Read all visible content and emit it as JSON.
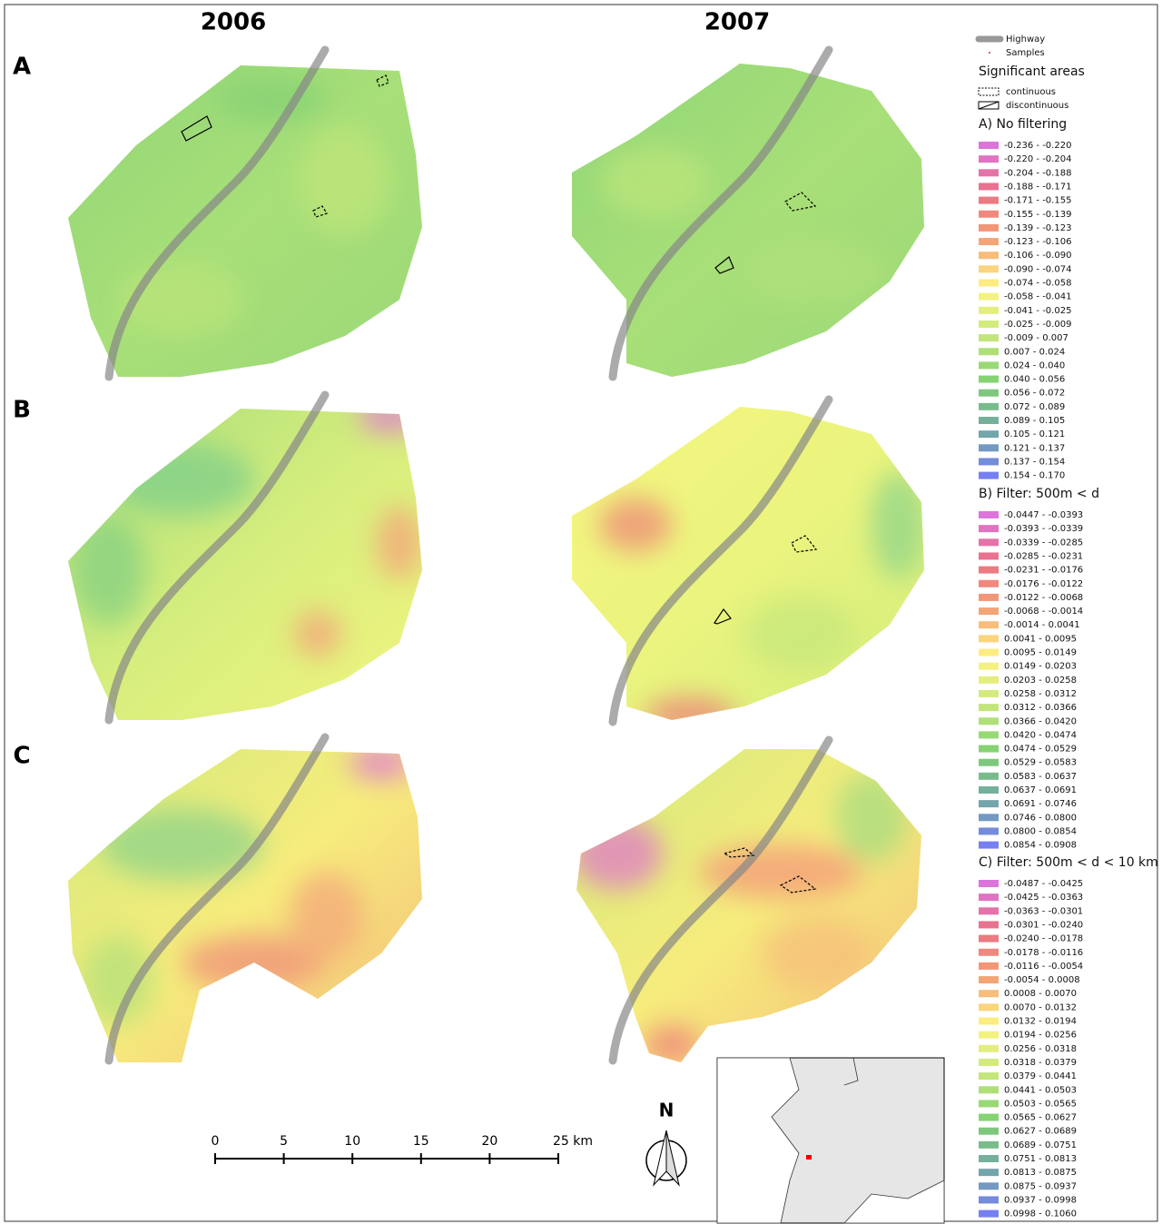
{
  "column_titles": [
    "2006",
    "2007"
  ],
  "row_labels": [
    "A",
    "B",
    "C"
  ],
  "legend": {
    "highway": "Highway",
    "samples": "Samples",
    "significant_title": "Significant areas",
    "continuous": "continuous",
    "discontinuous": "discontinuous",
    "sections": [
      {
        "title": "A) No filtering",
        "color_stops": [
          "#dc74dc",
          "#ea7284",
          "#f4a274",
          "#fef482",
          "#c8e87a",
          "#82d272",
          "#72aaa2",
          "#7680f2"
        ],
        "entries": [
          "-0.236 - -0.220",
          "-0.220 - -0.204",
          "-0.204 - -0.188",
          "-0.188 - -0.171",
          "-0.171 - -0.155",
          "-0.155 - -0.139",
          "-0.139 - -0.123",
          "-0.123 - -0.106",
          "-0.106 - -0.090",
          "-0.090 - -0.074",
          "-0.074 - -0.058",
          "-0.058 - -0.041",
          "-0.041 - -0.025",
          "-0.025 - -0.009",
          "-0.009 - 0.007",
          "0.007 - 0.024",
          "0.024 - 0.040",
          "0.040 - 0.056",
          "0.056 - 0.072",
          "0.072 - 0.089",
          "0.089 - 0.105",
          "0.105 - 0.121",
          "0.121 - 0.137",
          "0.137 - 0.154",
          "0.154 - 0.170"
        ]
      },
      {
        "title": "B) Filter: 500m < d",
        "color_stops": [
          "#dc74dc",
          "#ea7284",
          "#f4a274",
          "#fef482",
          "#c8e87a",
          "#82d272",
          "#72aaa2",
          "#7680f2"
        ],
        "entries": [
          "-0.0447 - -0.0393",
          "-0.0393 - -0.0339",
          "-0.0339 - -0.0285",
          "-0.0285 - -0.0231",
          "-0.0231 - -0.0176",
          "-0.0176 - -0.0122",
          "-0.0122 - -0.0068",
          "-0.0068 - -0.0014",
          "-0.0014 - 0.0041",
          "0.0041 - 0.0095",
          "0.0095 - 0.0149",
          "0.0149 - 0.0203",
          "0.0203 - 0.0258",
          "0.0258 - 0.0312",
          "0.0312 - 0.0366",
          "0.0366 - 0.0420",
          "0.0420 - 0.0474",
          "0.0474 - 0.0529",
          "0.0529 - 0.0583",
          "0.0583 - 0.0637",
          "0.0637 - 0.0691",
          "0.0691 - 0.0746",
          "0.0746 - 0.0800",
          "0.0800 - 0.0854",
          "0.0854 - 0.0908"
        ]
      },
      {
        "title": "C) Filter: 500m < d < 10 km",
        "color_stops": [
          "#dc74dc",
          "#ea7284",
          "#f4a274",
          "#fef482",
          "#c8e87a",
          "#82d272",
          "#72aaa2",
          "#7680f2"
        ],
        "entries": [
          "-0.0487 - -0.0425",
          "-0.0425 - -0.0363",
          "-0.0363 - -0.0301",
          "-0.0301 - -0.0240",
          "-0.0240 - -0.0178",
          "-0.0178 - -0.0116",
          "-0.0116 - -0.0054",
          "-0.0054 - 0.0008",
          "0.0008 - 0.0070",
          "0.0070 - 0.0132",
          "0.0132 - 0.0194",
          "0.0194 - 0.0256",
          "0.0256 - 0.0318",
          "0.0318 - 0.0379",
          "0.0379 - 0.0441",
          "0.0441 - 0.0503",
          "0.0503 - 0.0565",
          "0.0565 - 0.0627",
          "0.0627 - 0.0689",
          "0.0689 - 0.0751",
          "0.0751 - 0.0813",
          "0.0813 - 0.0875",
          "0.0875 - 0.0937",
          "0.0937 - 0.0998",
          "0.0998 - 0.1060"
        ]
      }
    ]
  },
  "scale_bar": {
    "labels": [
      "0",
      "5",
      "10",
      "15",
      "20",
      "25 km"
    ]
  },
  "north": "N"
}
